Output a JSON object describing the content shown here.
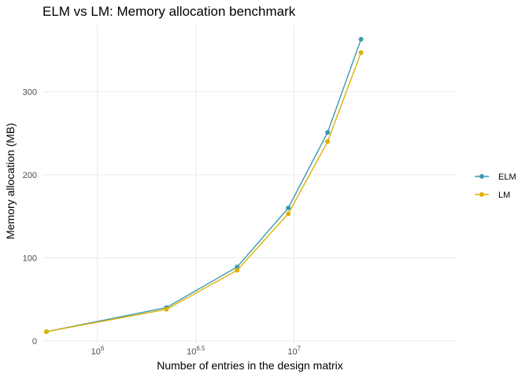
{
  "chart_data": {
    "type": "line",
    "title": "ELM vs LM: Memory allocation benchmark",
    "xlabel": "Number of entries in the design matrix",
    "ylabel": "Memory allocation (MB)",
    "x_scale": "log10",
    "xlim": [
      5.72,
      7.83
    ],
    "ylim": [
      -3,
      380
    ],
    "x_ticks": [
      {
        "value": 6,
        "base": "10",
        "exp": "6"
      },
      {
        "value": 6.5,
        "base": "10",
        "exp": "6.5"
      },
      {
        "value": 7,
        "base": "10",
        "exp": "7"
      }
    ],
    "y_ticks": [
      0,
      100,
      200,
      300
    ],
    "grid": true,
    "legend_position": "right",
    "series": [
      {
        "name": "ELM",
        "color": "#3a9ab2",
        "points": [
          {
            "x": 5.74,
            "y": 11
          },
          {
            "x": 6.35,
            "y": 40
          },
          {
            "x": 6.71,
            "y": 89
          },
          {
            "x": 6.97,
            "y": 160
          },
          {
            "x": 7.17,
            "y": 251
          },
          {
            "x": 7.34,
            "y": 363
          }
        ]
      },
      {
        "name": "LM",
        "color": "#e1af00",
        "points": [
          {
            "x": 5.74,
            "y": 11
          },
          {
            "x": 6.35,
            "y": 38
          },
          {
            "x": 6.71,
            "y": 85
          },
          {
            "x": 6.97,
            "y": 153
          },
          {
            "x": 7.17,
            "y": 240
          },
          {
            "x": 7.34,
            "y": 347
          }
        ]
      }
    ]
  }
}
